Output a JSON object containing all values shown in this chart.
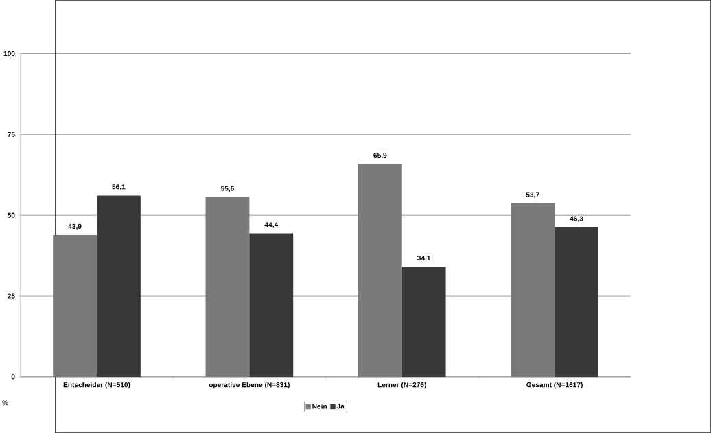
{
  "chart_data": {
    "type": "bar",
    "ylabel": "%",
    "categories": [
      "Entscheider (N=510)",
      "operative Ebene (N=831)",
      "Lerner (N=276)",
      "Gesamt (N=1617)"
    ],
    "series": [
      {
        "name": "Nein",
        "color": "#7a7a7a",
        "values": [
          43.9,
          55.6,
          65.9,
          53.7
        ],
        "value_labels": [
          "43,9",
          "55,6",
          "65,9",
          "53,7"
        ]
      },
      {
        "name": "Ja",
        "color": "#383838",
        "values": [
          56.1,
          44.4,
          34.1,
          46.3
        ],
        "value_labels": [
          "56,1",
          "44,4",
          "34,1",
          "46,3"
        ]
      }
    ],
    "ylim": [
      0,
      100
    ],
    "yticks": [
      0,
      25,
      50,
      75,
      100
    ],
    "grid": "y",
    "legend": "bottom"
  }
}
